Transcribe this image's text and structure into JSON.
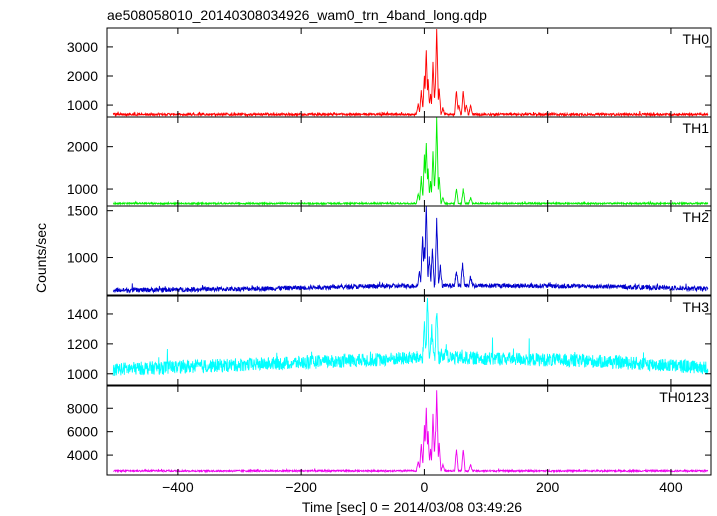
{
  "figure_title": "ae508058010_20140308034926_wam0_trn_4band_long.qdp",
  "ylabel": "Counts/sec",
  "xlabel": "Time [sec] 0 = 2014/03/08 03:49:26",
  "chart_data": {
    "type": "line",
    "title": "ae508058010_20140308034926_wam0_trn_4band_long.qdp",
    "xlabel": "Time [sec] 0 = 2014/03/08 03:49:26",
    "ylabel": "Counts/sec",
    "xlim": [
      -515,
      465
    ],
    "x_ticks": [
      -400,
      -200,
      0,
      200,
      400
    ],
    "x_tick_labels": [
      "−400",
      "−200",
      "0",
      "200",
      "400"
    ],
    "x_data_range": [
      -505,
      460
    ],
    "grid": false,
    "panels": [
      {
        "name": "TH0",
        "color": "#ff0000",
        "ylim": [
          590,
          3650
        ],
        "y_ticks": [
          1000,
          2000,
          3000
        ],
        "baseline": 680,
        "noise": 40,
        "baseline_trend": [],
        "features": [
          {
            "t": -10,
            "value": 1050
          },
          {
            "t": -5,
            "value": 1500
          },
          {
            "t": 0,
            "value": 2000
          },
          {
            "t": 3,
            "value": 2900
          },
          {
            "t": 6,
            "value": 1900
          },
          {
            "t": 10,
            "value": 1400
          },
          {
            "t": 14,
            "value": 2500
          },
          {
            "t": 18,
            "value": 1800
          },
          {
            "t": 20,
            "value": 3650
          },
          {
            "t": 24,
            "value": 1600
          },
          {
            "t": 30,
            "value": 900
          },
          {
            "t": 52,
            "value": 1500
          },
          {
            "t": 56,
            "value": 1000
          },
          {
            "t": 63,
            "value": 1500
          },
          {
            "t": 68,
            "value": 1000
          },
          {
            "t": 75,
            "value": 1000
          }
        ]
      },
      {
        "name": "TH1",
        "color": "#00ee00",
        "ylim": [
          600,
          2700
        ],
        "y_ticks": [
          1000,
          2000
        ],
        "baseline": 660,
        "noise": 18,
        "baseline_trend": [],
        "features": [
          {
            "t": -10,
            "value": 900
          },
          {
            "t": -5,
            "value": 1300
          },
          {
            "t": 0,
            "value": 1800
          },
          {
            "t": 3,
            "value": 2100
          },
          {
            "t": 6,
            "value": 1500
          },
          {
            "t": 10,
            "value": 1200
          },
          {
            "t": 14,
            "value": 1900
          },
          {
            "t": 18,
            "value": 1500
          },
          {
            "t": 20,
            "value": 2700
          },
          {
            "t": 24,
            "value": 1300
          },
          {
            "t": 30,
            "value": 800
          },
          {
            "t": 52,
            "value": 1000
          },
          {
            "t": 63,
            "value": 1000
          },
          {
            "t": 75,
            "value": 800
          }
        ]
      },
      {
        "name": "TH2",
        "color": "#0000cc",
        "ylim": [
          600,
          1550
        ],
        "y_ticks": [
          1000,
          1500
        ],
        "baseline": 650,
        "noise": 25,
        "baseline_trend": [
          [
            -505,
            650
          ],
          [
            -300,
            665
          ],
          [
            -100,
            690
          ],
          [
            0,
            700
          ],
          [
            150,
            700
          ],
          [
            300,
            690
          ],
          [
            460,
            665
          ]
        ],
        "features": [
          {
            "t": -8,
            "value": 850
          },
          {
            "t": -3,
            "value": 1250
          },
          {
            "t": 0,
            "value": 1100
          },
          {
            "t": 3,
            "value": 1550
          },
          {
            "t": 8,
            "value": 1000
          },
          {
            "t": 13,
            "value": 1100
          },
          {
            "t": 20,
            "value": 1400
          },
          {
            "t": 26,
            "value": 900
          },
          {
            "t": 52,
            "value": 850
          },
          {
            "t": 62,
            "value": 950
          },
          {
            "t": 75,
            "value": 800
          }
        ]
      },
      {
        "name": "TH3",
        "color": "#00ffff",
        "ylim": [
          925,
          1520
        ],
        "y_ticks": [
          1000,
          1200,
          1400
        ],
        "baseline": 1060,
        "noise": 45,
        "baseline_trend": [
          [
            -505,
            1030
          ],
          [
            -300,
            1060
          ],
          [
            -100,
            1090
          ],
          [
            0,
            1110
          ],
          [
            150,
            1100
          ],
          [
            300,
            1080
          ],
          [
            460,
            1040
          ]
        ],
        "features": [
          {
            "t": 0,
            "value": 1350
          },
          {
            "t": 5,
            "value": 1500
          },
          {
            "t": 12,
            "value": 1300
          },
          {
            "t": 20,
            "value": 1420
          },
          {
            "t": 35,
            "value": 1200
          }
        ]
      },
      {
        "name": "TH0123",
        "color": "#ee00ee",
        "ylim": [
          2300,
          9900
        ],
        "y_ticks": [
          4000,
          6000,
          8000
        ],
        "baseline": 2650,
        "noise": 70,
        "baseline_trend": [],
        "features": [
          {
            "t": -10,
            "value": 3500
          },
          {
            "t": -5,
            "value": 5000
          },
          {
            "t": 0,
            "value": 6500
          },
          {
            "t": 3,
            "value": 8000
          },
          {
            "t": 6,
            "value": 6000
          },
          {
            "t": 10,
            "value": 4500
          },
          {
            "t": 14,
            "value": 7500
          },
          {
            "t": 18,
            "value": 6000
          },
          {
            "t": 20,
            "value": 9500
          },
          {
            "t": 24,
            "value": 5000
          },
          {
            "t": 30,
            "value": 3200
          },
          {
            "t": 52,
            "value": 4500
          },
          {
            "t": 63,
            "value": 4500
          },
          {
            "t": 75,
            "value": 3200
          }
        ]
      }
    ]
  }
}
